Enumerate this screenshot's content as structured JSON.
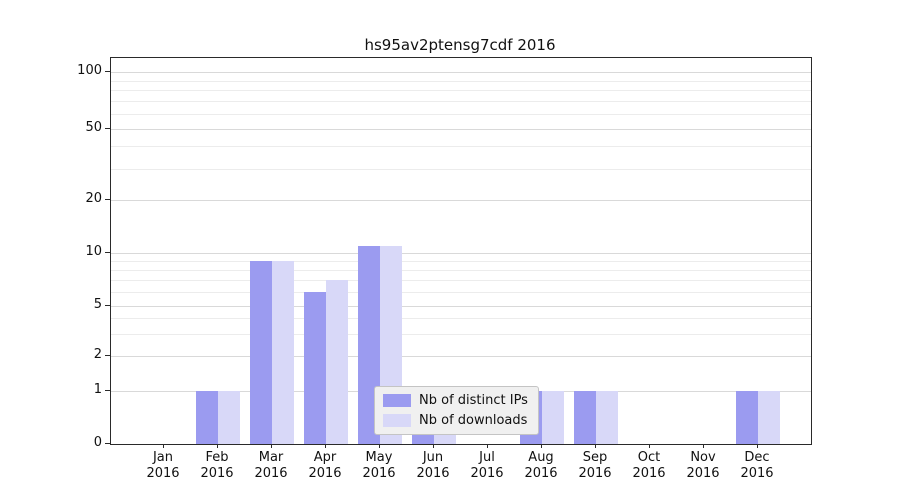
{
  "title": "hs95av2ptensg7cdf 2016",
  "chart_data": {
    "type": "bar",
    "title": "hs95av2ptensg7cdf 2016",
    "categories": [
      "Jan 2016",
      "Feb 2016",
      "Mar 2016",
      "Apr 2016",
      "May 2016",
      "Jun 2016",
      "Jul 2016",
      "Aug 2016",
      "Sep 2016",
      "Oct 2016",
      "Nov 2016",
      "Dec 2016"
    ],
    "series": [
      {
        "name": "Nb of distinct IPs",
        "color": "#9b9bf0",
        "values": [
          0,
          1,
          9,
          6,
          11,
          1,
          0,
          1,
          1,
          0,
          0,
          1
        ]
      },
      {
        "name": "Nb of downloads",
        "color": "#d8d8f8",
        "values": [
          0,
          1,
          9,
          7,
          11,
          1,
          0,
          1,
          1,
          0,
          0,
          1
        ]
      }
    ],
    "xlabel": "",
    "ylabel": "",
    "y_scale": "symlog",
    "ylim": [
      0,
      120
    ],
    "y_ticks": [
      0,
      1,
      2,
      5,
      10,
      20,
      50,
      100
    ],
    "y_minor_ticks": [
      3,
      4,
      6,
      7,
      8,
      9,
      30,
      40,
      60,
      70,
      80,
      90
    ],
    "grid": true,
    "legend_position": "lower-center-inside"
  }
}
